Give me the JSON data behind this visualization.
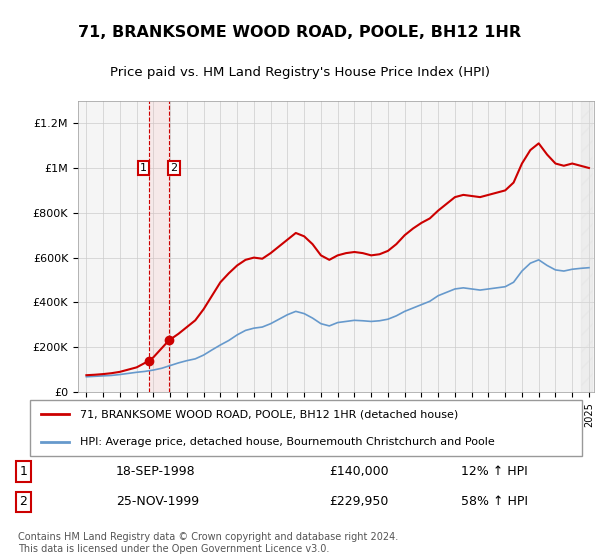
{
  "title": "71, BRANKSOME WOOD ROAD, POOLE, BH12 1HR",
  "subtitle": "Price paid vs. HM Land Registry's House Price Index (HPI)",
  "ylim": [
    0,
    1300000
  ],
  "yticks": [
    0,
    200000,
    400000,
    600000,
    800000,
    1000000,
    1200000
  ],
  "ytick_labels": [
    "£0",
    "£200K",
    "£400K",
    "£600K",
    "£800K",
    "£1M",
    "£1.2M"
  ],
  "sale1_date": "18-SEP-1998",
  "sale1_price": 140000,
  "sale1_pct": "12% ↑ HPI",
  "sale2_date": "25-NOV-1999",
  "sale2_price": 229950,
  "sale2_pct": "58% ↑ HPI",
  "legend_line1": "71, BRANKSOME WOOD ROAD, POOLE, BH12 1HR (detached house)",
  "legend_line2": "HPI: Average price, detached house, Bournemouth Christchurch and Poole",
  "footer": "Contains HM Land Registry data © Crown copyright and database right 2024.\nThis data is licensed under the Open Government Licence v3.0.",
  "line1_color": "#cc0000",
  "line2_color": "#6699cc",
  "background_color": "#ffffff",
  "plot_bg_color": "#f5f5f5",
  "grid_color": "#cccccc",
  "shade_color": "#ffcccc"
}
